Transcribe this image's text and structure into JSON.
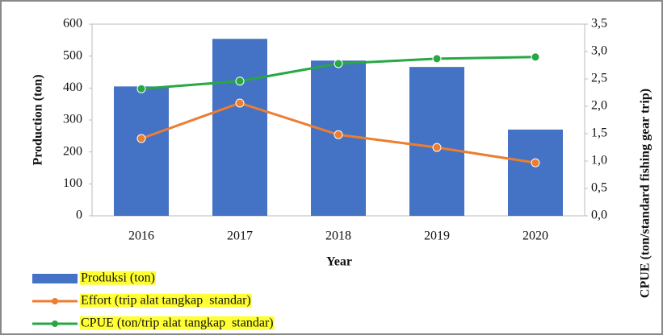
{
  "chart_data": {
    "type": "bar",
    "categories": [
      "2016",
      "2017",
      "2018",
      "2019",
      "2020"
    ],
    "xlabel": "Year",
    "ylabel": "Production (ton)",
    "y2label": "CPUE (ton/standard fishing gear trip)",
    "ylim": [
      0,
      600
    ],
    "yticks": [
      0,
      100,
      200,
      300,
      400,
      500,
      600
    ],
    "y2lim": [
      0,
      3.5
    ],
    "y2ticks": [
      {
        "value": 0,
        "label": "0,0"
      },
      {
        "value": 0.5,
        "label": "0,5"
      },
      {
        "value": 1,
        "label": "1,0"
      },
      {
        "value": 1.5,
        "label": "1,5"
      },
      {
        "value": 2,
        "label": "2,0"
      },
      {
        "value": 2.5,
        "label": "2,5"
      },
      {
        "value": 3,
        "label": "3,0"
      },
      {
        "value": 3.5,
        "label": "3,5"
      }
    ],
    "series": [
      {
        "name": "Produksi (ton)",
        "type": "bar",
        "color": "#4472c4",
        "values": [
          405,
          554,
          486,
          466,
          270
        ]
      },
      {
        "name": "Effort (trip alat tangkap  standar)",
        "type": "line",
        "color": "#ed7d31",
        "values": [
          242,
          353,
          254,
          214,
          166
        ]
      },
      {
        "name": "CPUE (ton/trip alat tangkap  standar)",
        "type": "line",
        "axis": "y2",
        "color": "#28a745",
        "values": [
          2.32,
          2.46,
          2.78,
          2.87,
          2.9
        ]
      }
    ]
  }
}
